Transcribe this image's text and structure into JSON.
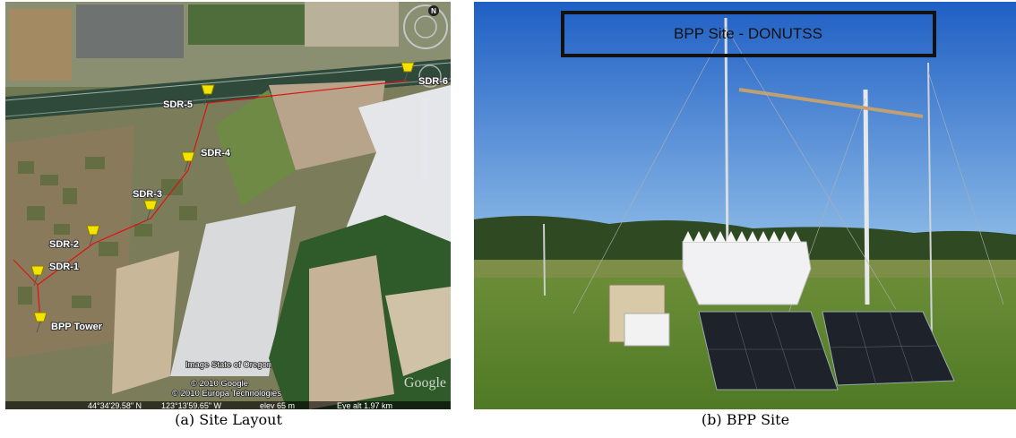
{
  "panels": [
    {
      "caption": "(a) Site Layout",
      "map": {
        "sites": [
          "SDR-6",
          "SDR-5",
          "SDR-4",
          "SDR-3",
          "SDR-2",
          "SDR-1",
          "BPP Tower"
        ],
        "compass": "N",
        "credits": [
          "Image State of Oregon",
          "© 2010 Google",
          "© 2010 Europa Technologies"
        ],
        "watermark": "Google",
        "status": [
          "44°34'29.58\" N",
          "123°13'59.65\" W",
          "elev  65 m",
          "Eye alt   1.97 km"
        ]
      }
    },
    {
      "caption": "(b) BPP Site",
      "banner": "BPP Site - DONUTSS"
    }
  ]
}
